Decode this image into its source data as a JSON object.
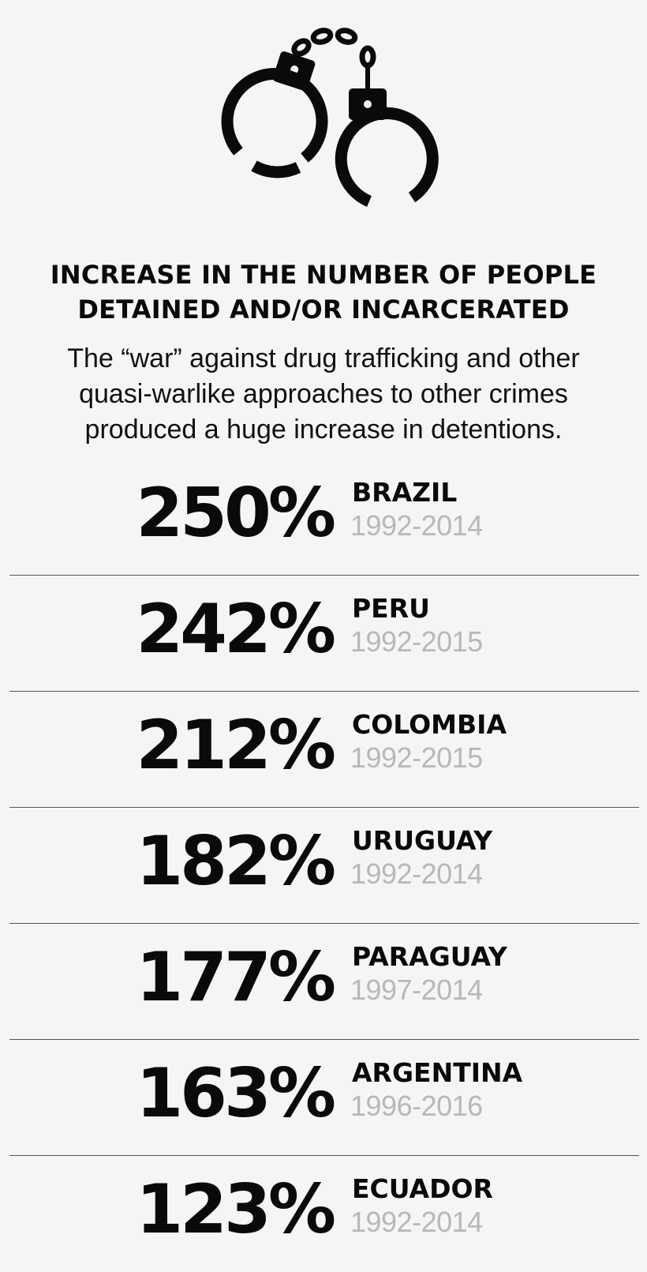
{
  "icon": "handcuffs-icon",
  "title_lines": [
    "INCREASE IN THE NUMBER OF PEOPLE",
    "DETAINED AND/OR INCARCERATED"
  ],
  "subtitle_lines": [
    "The “war” against drug trafficking and other",
    "quasi-warlike approaches to other crimes",
    "produced a huge increase in detentions."
  ],
  "stats": [
    {
      "value": "250%",
      "country": "BRAZIL",
      "years": "1992-2014"
    },
    {
      "value": "242%",
      "country": "PERU",
      "years": "1992-2015"
    },
    {
      "value": "212%",
      "country": "COLOMBIA",
      "years": "1992-2015"
    },
    {
      "value": "182%",
      "country": "URUGUAY",
      "years": "1992-2014"
    },
    {
      "value": "177%",
      "country": "PARAGUAY",
      "years": "1997-2014"
    },
    {
      "value": "163%",
      "country": "ARGENTINA",
      "years": "1996-2016"
    },
    {
      "value": "123%",
      "country": "ECUADOR",
      "years": "1992-2014"
    }
  ],
  "chart_data": {
    "type": "table",
    "title": "INCREASE IN THE NUMBER OF PEOPLE DETAINED AND/OR INCARCERATED",
    "categories": [
      "BRAZIL",
      "PERU",
      "COLOMBIA",
      "URUGUAY",
      "PARAGUAY",
      "ARGENTINA",
      "ECUADOR"
    ],
    "values": [
      250,
      242,
      212,
      182,
      177,
      163,
      123
    ],
    "periods": [
      "1992-2014",
      "1992-2015",
      "1992-2015",
      "1992-2014",
      "1997-2014",
      "1996-2016",
      "1992-2014"
    ]
  },
  "colors": {
    "background": "#f5f5f5",
    "text": "#0a0a0a",
    "years": "#b8b8b8",
    "divider": "#555555"
  }
}
